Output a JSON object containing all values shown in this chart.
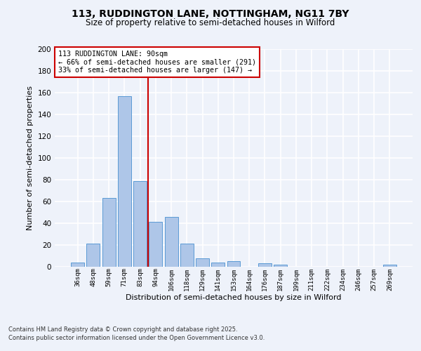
{
  "title": "113, RUDDINGTON LANE, NOTTINGHAM, NG11 7BY",
  "subtitle": "Size of property relative to semi-detached houses in Wilford",
  "xlabel": "Distribution of semi-detached houses by size in Wilford",
  "ylabel": "Number of semi-detached properties",
  "categories": [
    "36sqm",
    "48sqm",
    "59sqm",
    "71sqm",
    "83sqm",
    "94sqm",
    "106sqm",
    "118sqm",
    "129sqm",
    "141sqm",
    "153sqm",
    "164sqm",
    "176sqm",
    "187sqm",
    "199sqm",
    "211sqm",
    "222sqm",
    "234sqm",
    "246sqm",
    "257sqm",
    "269sqm"
  ],
  "values": [
    4,
    21,
    63,
    157,
    79,
    41,
    46,
    21,
    8,
    4,
    5,
    0,
    3,
    2,
    0,
    0,
    0,
    0,
    0,
    0,
    2
  ],
  "bar_color": "#aec6e8",
  "bar_edge_color": "#5b9bd5",
  "annotation_title": "113 RUDDINGTON LANE: 90sqm",
  "annotation_line1": "← 66% of semi-detached houses are smaller (291)",
  "annotation_line2": "33% of semi-detached houses are larger (147) →",
  "vline_color": "#cc0000",
  "annotation_box_color": "#cc0000",
  "ylim": [
    0,
    200
  ],
  "yticks": [
    0,
    20,
    40,
    60,
    80,
    100,
    120,
    140,
    160,
    180,
    200
  ],
  "footer_line1": "Contains HM Land Registry data © Crown copyright and database right 2025.",
  "footer_line2": "Contains public sector information licensed under the Open Government Licence v3.0.",
  "bg_color": "#eef2fa",
  "grid_color": "#ffffff"
}
